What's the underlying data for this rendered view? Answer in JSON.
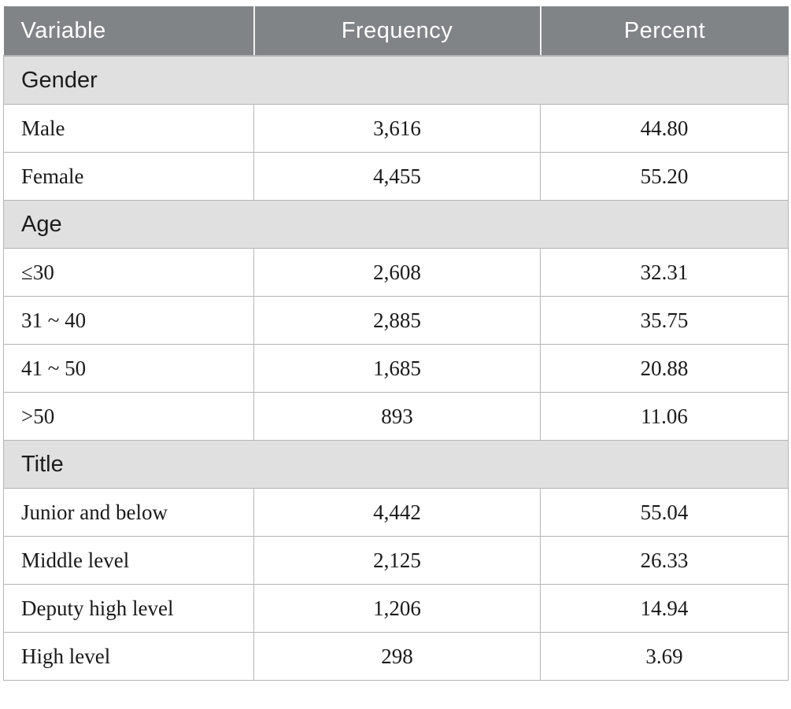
{
  "table": {
    "columns": [
      "Variable",
      "Frequency",
      "Percent"
    ],
    "sections": [
      {
        "label": "Gender",
        "rows": [
          [
            "Male",
            "3,616",
            "44.80"
          ],
          [
            "Female",
            "4,455",
            "55.20"
          ]
        ]
      },
      {
        "label": "Age",
        "rows": [
          [
            "≤30",
            "2,608",
            "32.31"
          ],
          [
            "31 ~ 40",
            "2,885",
            "35.75"
          ],
          [
            "41 ~ 50",
            "1,685",
            "20.88"
          ],
          [
            ">50",
            "893",
            "11.06"
          ]
        ]
      },
      {
        "label": "Title",
        "rows": [
          [
            "Junior and below",
            "4,442",
            "55.04"
          ],
          [
            "Middle level",
            "2,125",
            "26.33"
          ],
          [
            "Deputy high level",
            "1,206",
            "14.94"
          ],
          [
            "High level",
            "298",
            "3.69"
          ]
        ]
      }
    ],
    "colors": {
      "header_bg": "#818486",
      "header_text": "#ffffff",
      "section_bg": "#e0e0e0",
      "row_bg": "#ffffff",
      "border": "#b5b5b5",
      "body_text": "#1a1a1a",
      "section_text": "#1c1c1c"
    }
  },
  "chart_data": {
    "type": "table",
    "title": "",
    "columns": [
      "Variable",
      "Frequency",
      "Percent"
    ],
    "rows": [
      [
        "Gender",
        "",
        ""
      ],
      [
        "Male",
        3616,
        44.8
      ],
      [
        "Female",
        4455,
        55.2
      ],
      [
        "Age",
        "",
        ""
      ],
      [
        "≤30",
        2608,
        32.31
      ],
      [
        "31 ~ 40",
        2885,
        35.75
      ],
      [
        "41 ~ 50",
        1685,
        20.88
      ],
      [
        ">50",
        893,
        11.06
      ],
      [
        "Title",
        "",
        ""
      ],
      [
        "Junior and below",
        4442,
        55.04
      ],
      [
        "Middle level",
        2125,
        26.33
      ],
      [
        "Deputy high level",
        1206,
        14.94
      ],
      [
        "High level",
        298,
        3.69
      ]
    ]
  }
}
